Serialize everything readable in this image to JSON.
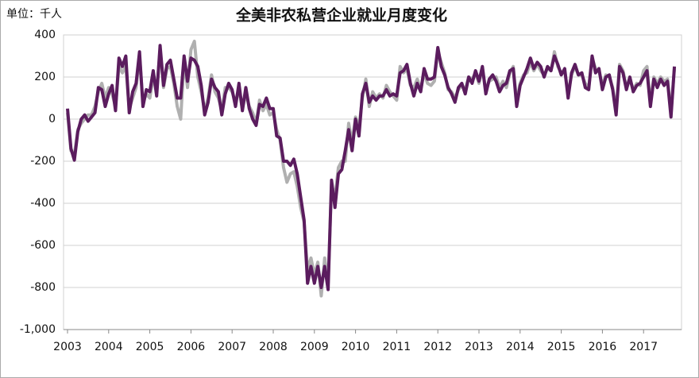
{
  "chart_data": {
    "type": "line",
    "title": "全美非农私营企业就业月度变化",
    "unit_label": "单位：千人",
    "categories": [
      "2003",
      null,
      null,
      null,
      null,
      null,
      null,
      null,
      null,
      null,
      null,
      null,
      "2004",
      null,
      null,
      null,
      null,
      null,
      null,
      null,
      null,
      null,
      null,
      null,
      "2005",
      null,
      null,
      null,
      null,
      null,
      null,
      null,
      null,
      null,
      null,
      null,
      "2006",
      null,
      null,
      null,
      null,
      null,
      null,
      null,
      null,
      null,
      null,
      null,
      "2007",
      null,
      null,
      null,
      null,
      null,
      null,
      null,
      null,
      null,
      null,
      null,
      "2008",
      null,
      null,
      null,
      null,
      null,
      null,
      null,
      null,
      null,
      null,
      null,
      "2009",
      null,
      null,
      null,
      null,
      null,
      null,
      null,
      null,
      null,
      null,
      null,
      "2010",
      null,
      null,
      null,
      null,
      null,
      null,
      null,
      null,
      null,
      null,
      null,
      "2011",
      null,
      null,
      null,
      null,
      null,
      null,
      null,
      null,
      null,
      null,
      null,
      "2012",
      null,
      null,
      null,
      null,
      null,
      null,
      null,
      null,
      null,
      null,
      null,
      "2013",
      null,
      null,
      null,
      null,
      null,
      null,
      null,
      null,
      null,
      null,
      null,
      "2014",
      null,
      null,
      null,
      null,
      null,
      null,
      null,
      null,
      null,
      null,
      null,
      "2015",
      null,
      null,
      null,
      null,
      null,
      null,
      null,
      null,
      null,
      null,
      null,
      "2016",
      null,
      null,
      null,
      null,
      null,
      null,
      null,
      null,
      null,
      null,
      null,
      "2017",
      null,
      null,
      null,
      null,
      null,
      null,
      null,
      null,
      null
    ],
    "series": [
      {
        "color": "#b0b0b0",
        "width": 4,
        "values": [
          30,
          -150,
          -170,
          -50,
          -20,
          0,
          20,
          20,
          60,
          130,
          170,
          100,
          150,
          120,
          60,
          250,
          220,
          250,
          50,
          100,
          150,
          300,
          80,
          120,
          100,
          200,
          130,
          330,
          150,
          240,
          250,
          170,
          60,
          0,
          280,
          150,
          330,
          370,
          200,
          130,
          40,
          100,
          210,
          130,
          100,
          40,
          150,
          150,
          130,
          80,
          140,
          50,
          120,
          60,
          30,
          -20,
          90,
          40,
          70,
          20,
          30,
          -50,
          -100,
          -230,
          -300,
          -260,
          -250,
          -320,
          -420,
          -490,
          -720,
          -660,
          -740,
          -680,
          -840,
          -660,
          -780,
          -310,
          -370,
          -230,
          -200,
          -200,
          -20,
          -110,
          10,
          -40,
          100,
          190,
          60,
          130,
          100,
          120,
          100,
          160,
          130,
          110,
          90,
          250,
          220,
          240,
          160,
          150,
          190,
          140,
          220,
          170,
          160,
          180,
          320,
          270,
          220,
          140,
          130,
          100,
          140,
          160,
          140,
          200,
          190,
          220,
          170,
          240,
          140,
          180,
          190,
          200,
          150,
          180,
          150,
          220,
          250,
          80,
          170,
          210,
          220,
          270,
          230,
          260,
          230,
          210,
          240,
          230,
          320,
          250,
          220,
          230,
          120,
          210,
          250,
          210,
          210,
          170,
          150,
          290,
          240,
          230,
          160,
          210,
          200,
          150,
          40,
          260,
          230,
          150,
          190,
          140,
          170,
          160,
          230,
          250,
          80,
          200,
          170,
          200,
          180,
          190,
          30,
          240
        ]
      },
      {
        "color": "#5b1c5e",
        "width": 4,
        "values": [
          50,
          -140,
          -195,
          -60,
          0,
          20,
          -10,
          10,
          30,
          150,
          140,
          60,
          120,
          160,
          40,
          290,
          250,
          300,
          30,
          130,
          170,
          320,
          60,
          140,
          130,
          230,
          110,
          350,
          160,
          260,
          280,
          190,
          100,
          100,
          300,
          180,
          290,
          280,
          250,
          160,
          20,
          80,
          190,
          150,
          130,
          20,
          120,
          170,
          140,
          60,
          170,
          40,
          150,
          50,
          0,
          -30,
          70,
          60,
          100,
          50,
          50,
          -80,
          -90,
          -200,
          -200,
          -220,
          -190,
          -260,
          -370,
          -480,
          -780,
          -700,
          -780,
          -700,
          -800,
          -700,
          -810,
          -290,
          -420,
          -260,
          -240,
          -150,
          -50,
          -150,
          0,
          -80,
          120,
          170,
          80,
          110,
          90,
          110,
          110,
          140,
          110,
          120,
          110,
          220,
          230,
          260,
          170,
          110,
          170,
          130,
          240,
          190,
          190,
          200,
          340,
          250,
          210,
          150,
          120,
          80,
          150,
          170,
          120,
          200,
          170,
          230,
          180,
          250,
          120,
          190,
          210,
          180,
          130,
          160,
          170,
          230,
          240,
          60,
          160,
          200,
          240,
          290,
          240,
          270,
          250,
          200,
          250,
          230,
          300,
          260,
          210,
          240,
          100,
          220,
          260,
          210,
          220,
          150,
          140,
          300,
          220,
          240,
          140,
          200,
          210,
          140,
          20,
          250,
          220,
          140,
          200,
          130,
          160,
          170,
          200,
          230,
          60,
          190,
          150,
          190,
          160,
          180,
          10,
          250
        ]
      }
    ],
    "ylim": [
      -1000,
      400
    ],
    "yticks": [
      {
        "value": -1000,
        "label": "-1,000"
      },
      -800,
      -600,
      -400,
      -200,
      0,
      200,
      400
    ],
    "grid": true
  }
}
